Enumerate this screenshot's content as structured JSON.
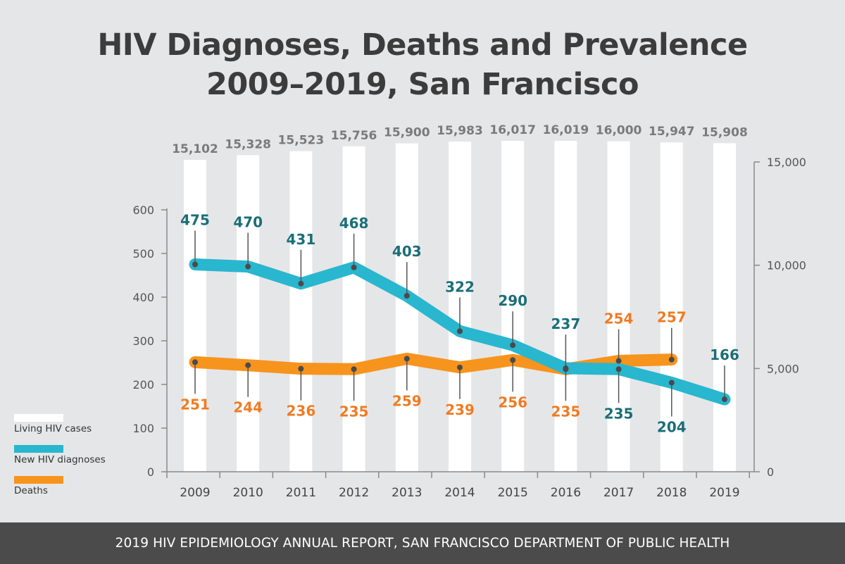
{
  "title_line1": "HIV Diagnoses, Deaths and Prevalence",
  "title_line2": "2009–2019, San Francisco",
  "footer": "2019 HIV EPIDEMIOLOGY ANNUAL REPORT, SAN FRANCISCO DEPARTMENT OF PUBLIC HEALTH",
  "legend": [
    {
      "label": "Living HIV cases",
      "color": "#ffffff"
    },
    {
      "label": "New HIV diagnoses",
      "color": "#29b6cf"
    },
    {
      "label": "Deaths",
      "color": "#f7941d"
    }
  ],
  "chart_data": {
    "type": "bar+line",
    "categories": [
      "2009",
      "2010",
      "2011",
      "2012",
      "2013",
      "2014",
      "2015",
      "2016",
      "2017",
      "2018",
      "2019"
    ],
    "left_axis": {
      "ticks": [
        "0",
        "100",
        "200",
        "300",
        "400",
        "500",
        "600"
      ],
      "range": [
        0,
        600
      ]
    },
    "right_axis": {
      "ticks": [
        "0",
        "5,000",
        "10,000",
        "15,000"
      ],
      "range": [
        0,
        15000
      ]
    },
    "series": [
      {
        "name": "Living HIV cases",
        "type": "bar",
        "axis": "right",
        "color": "#ffffff",
        "values": [
          15102,
          15328,
          15523,
          15756,
          15900,
          15983,
          16017,
          16019,
          16000,
          15947,
          15908
        ],
        "labels": [
          "15,102",
          "15,328",
          "15,523",
          "15,756",
          "15,900",
          "15,983",
          "16,017",
          "16,019",
          "16,000",
          "15,947",
          "15,908"
        ],
        "label_color": "#7a7a7a"
      },
      {
        "name": "New HIV diagnoses",
        "type": "line",
        "axis": "left",
        "color": "#29b6cf",
        "label_color": "#1a6e78",
        "values": [
          475,
          470,
          431,
          468,
          403,
          322,
          290,
          237,
          235,
          204,
          166
        ],
        "labels": [
          "475",
          "470",
          "431",
          "468",
          "403",
          "322",
          "290",
          "237",
          "235",
          "204",
          "166"
        ]
      },
      {
        "name": "Deaths",
        "type": "line",
        "axis": "left",
        "color": "#f7941d",
        "label_color": "#f07b23",
        "values": [
          251,
          244,
          236,
          235,
          259,
          239,
          256,
          235,
          254,
          257,
          null
        ],
        "labels": [
          "251",
          "244",
          "236",
          "235",
          "259",
          "239",
          "256",
          "235",
          "254",
          "257",
          ""
        ]
      }
    ]
  }
}
